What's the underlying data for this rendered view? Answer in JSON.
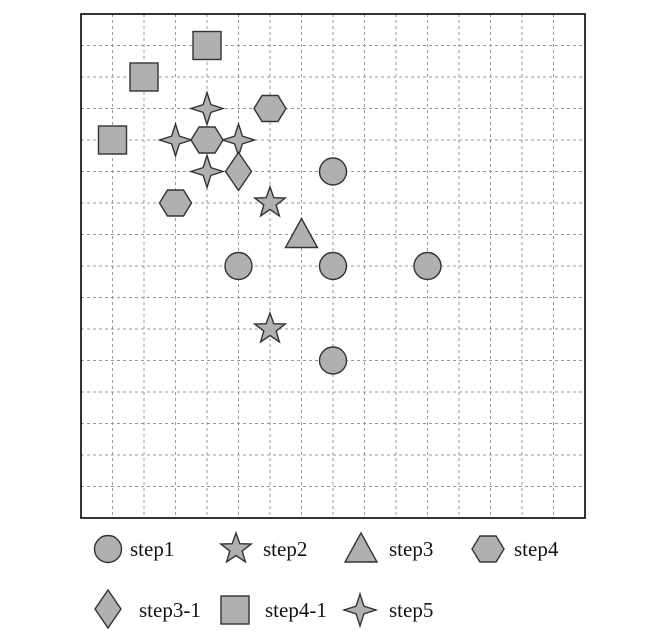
{
  "colors": {
    "marker_fill": "#b0b0b0",
    "marker_stroke": "#333333",
    "grid": "#9a9a9a",
    "border": "#000000"
  },
  "grid": {
    "columns": 16,
    "rows": 16,
    "style": "dashed"
  },
  "points": [
    {
      "shape": "square",
      "col": 4,
      "row": 1
    },
    {
      "shape": "square",
      "col": 2,
      "row": 2
    },
    {
      "shape": "square",
      "col": 1,
      "row": 4
    },
    {
      "shape": "sparkle",
      "col": 4,
      "row": 3
    },
    {
      "shape": "sparkle",
      "col": 3,
      "row": 4
    },
    {
      "shape": "sparkle",
      "col": 5,
      "row": 4
    },
    {
      "shape": "sparkle",
      "col": 4,
      "row": 5
    },
    {
      "shape": "hexagon",
      "col": 6,
      "row": 3
    },
    {
      "shape": "hexagon",
      "col": 4,
      "row": 4
    },
    {
      "shape": "hexagon",
      "col": 3,
      "row": 6
    },
    {
      "shape": "diamond",
      "col": 5,
      "row": 5
    },
    {
      "shape": "circle",
      "col": 8,
      "row": 5
    },
    {
      "shape": "star",
      "col": 6,
      "row": 6
    },
    {
      "shape": "triangle",
      "col": 7,
      "row": 7
    },
    {
      "shape": "circle",
      "col": 5,
      "row": 8
    },
    {
      "shape": "circle",
      "col": 8,
      "row": 8
    },
    {
      "shape": "circle",
      "col": 11,
      "row": 8
    },
    {
      "shape": "star",
      "col": 6,
      "row": 10
    },
    {
      "shape": "circle",
      "col": 8,
      "row": 11
    }
  ],
  "legend": [
    {
      "shape": "circle",
      "label": "step1"
    },
    {
      "shape": "star",
      "label": "step2"
    },
    {
      "shape": "triangle",
      "label": "step3"
    },
    {
      "shape": "hexagon",
      "label": "step4"
    },
    {
      "shape": "diamond",
      "label": "step3-1"
    },
    {
      "shape": "square",
      "label": "step4-1"
    },
    {
      "shape": "sparkle",
      "label": "step5"
    }
  ]
}
